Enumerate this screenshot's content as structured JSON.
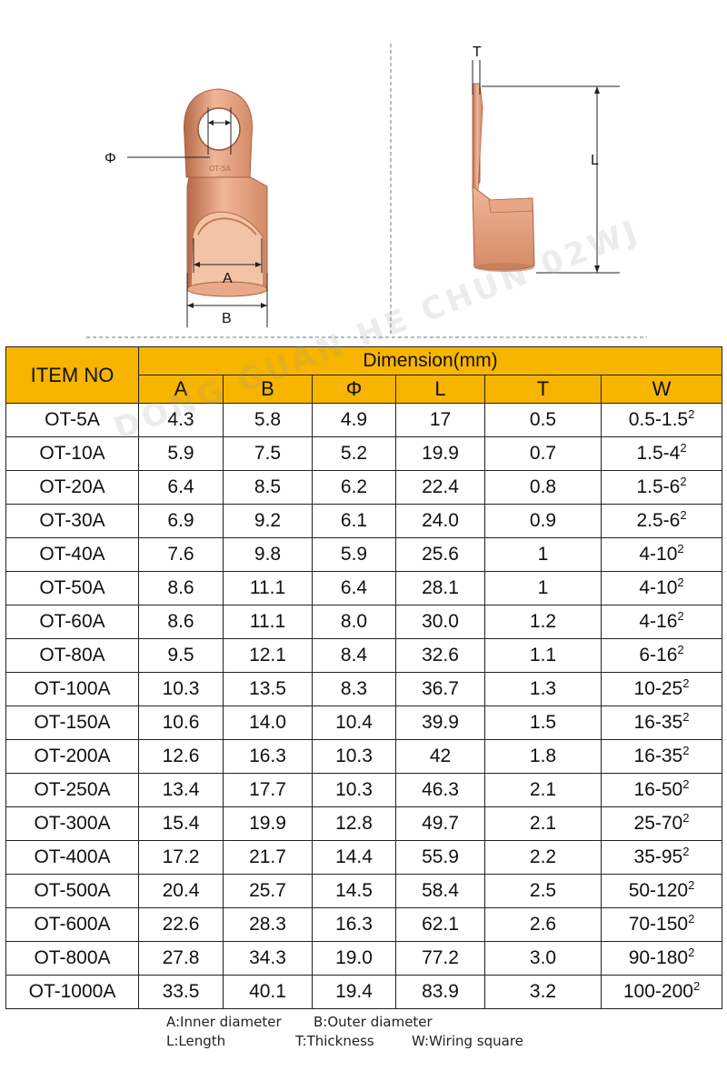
{
  "figure": {
    "front_view": {
      "phi_label": "Φ",
      "a_label": "A",
      "b_label": "B"
    },
    "side_view": {
      "t_label": "T",
      "l_label": "L"
    },
    "copper_color": "#d48b66",
    "copper_dark": "#b56a47",
    "copper_light": "#f0b598"
  },
  "watermark": "DONG GUAN HE CHUN 02WJ",
  "table": {
    "item_header": "ITEM NO",
    "dimension_header": "Dimension(mm)",
    "columns": [
      "A",
      "B",
      "Φ",
      "L",
      "T",
      "W"
    ],
    "header_color": "#f7b500",
    "rows": [
      {
        "item": "OT-5A",
        "a": "4.3",
        "b": "5.8",
        "phi": "4.9",
        "l": "17",
        "t": "0.5",
        "w": "0.5-1.5",
        "w_sup": "2"
      },
      {
        "item": "OT-10A",
        "a": "5.9",
        "b": "7.5",
        "phi": "5.2",
        "l": "19.9",
        "t": "0.7",
        "w": "1.5-4",
        "w_sup": "2"
      },
      {
        "item": "OT-20A",
        "a": "6.4",
        "b": "8.5",
        "phi": "6.2",
        "l": "22.4",
        "t": "0.8",
        "w": "1.5-6",
        "w_sup": "2"
      },
      {
        "item": "OT-30A",
        "a": "6.9",
        "b": "9.2",
        "phi": "6.1",
        "l": "24.0",
        "t": "0.9",
        "w": "2.5-6",
        "w_sup": "2"
      },
      {
        "item": "OT-40A",
        "a": "7.6",
        "b": "9.8",
        "phi": "5.9",
        "l": "25.6",
        "t": "1",
        "w": "4-10",
        "w_sup": "2"
      },
      {
        "item": "OT-50A",
        "a": "8.6",
        "b": "11.1",
        "phi": "6.4",
        "l": "28.1",
        "t": "1",
        "w": "4-10",
        "w_sup": "2"
      },
      {
        "item": "OT-60A",
        "a": "8.6",
        "b": "11.1",
        "phi": "8.0",
        "l": "30.0",
        "t": "1.2",
        "w": "4-16",
        "w_sup": "2"
      },
      {
        "item": "OT-80A",
        "a": "9.5",
        "b": "12.1",
        "phi": "8.4",
        "l": "32.6",
        "t": "1.1",
        "w": "6-16",
        "w_sup": "2"
      },
      {
        "item": "OT-100A",
        "a": "10.3",
        "b": "13.5",
        "phi": "8.3",
        "l": "36.7",
        "t": "1.3",
        "w": "10-25",
        "w_sup": "2"
      },
      {
        "item": "OT-150A",
        "a": "10.6",
        "b": "14.0",
        "phi": "10.4",
        "l": "39.9",
        "t": "1.5",
        "w": "16-35",
        "w_sup": "2"
      },
      {
        "item": "OT-200A",
        "a": "12.6",
        "b": "16.3",
        "phi": "10.3",
        "l": "42",
        "t": "1.8",
        "w": "16-35",
        "w_sup": "2"
      },
      {
        "item": "OT-250A",
        "a": "13.4",
        "b": "17.7",
        "phi": "10.3",
        "l": "46.3",
        "t": "2.1",
        "w": "16-50",
        "w_sup": "2"
      },
      {
        "item": "OT-300A",
        "a": "15.4",
        "b": "19.9",
        "phi": "12.8",
        "l": "49.7",
        "t": "2.1",
        "w": "25-70",
        "w_sup": "2"
      },
      {
        "item": "OT-400A",
        "a": "17.2",
        "b": "21.7",
        "phi": "14.4",
        "l": "55.9",
        "t": "2.2",
        "w": "35-95",
        "w_sup": "2"
      },
      {
        "item": "OT-500A",
        "a": "20.4",
        "b": "25.7",
        "phi": "14.5",
        "l": "58.4",
        "t": "2.5",
        "w": "50-120",
        "w_sup": "2"
      },
      {
        "item": "OT-600A",
        "a": "22.6",
        "b": "28.3",
        "phi": "16.3",
        "l": "62.1",
        "t": "2.6",
        "w": "70-150",
        "w_sup": "2"
      },
      {
        "item": "OT-800A",
        "a": "27.8",
        "b": "34.3",
        "phi": "19.0",
        "l": "77.2",
        "t": "3.0",
        "w": "90-180",
        "w_sup": "2"
      },
      {
        "item": "OT-1000A",
        "a": "33.5",
        "b": "40.1",
        "phi": "19.4",
        "l": "83.9",
        "t": "3.2",
        "w": "100-200",
        "w_sup": "2"
      }
    ]
  },
  "legend": {
    "a": "A:Inner diameter",
    "b": "B:Outer diameter",
    "l": "L:Length",
    "t": "T:Thickness",
    "w": "W:Wiring square"
  }
}
